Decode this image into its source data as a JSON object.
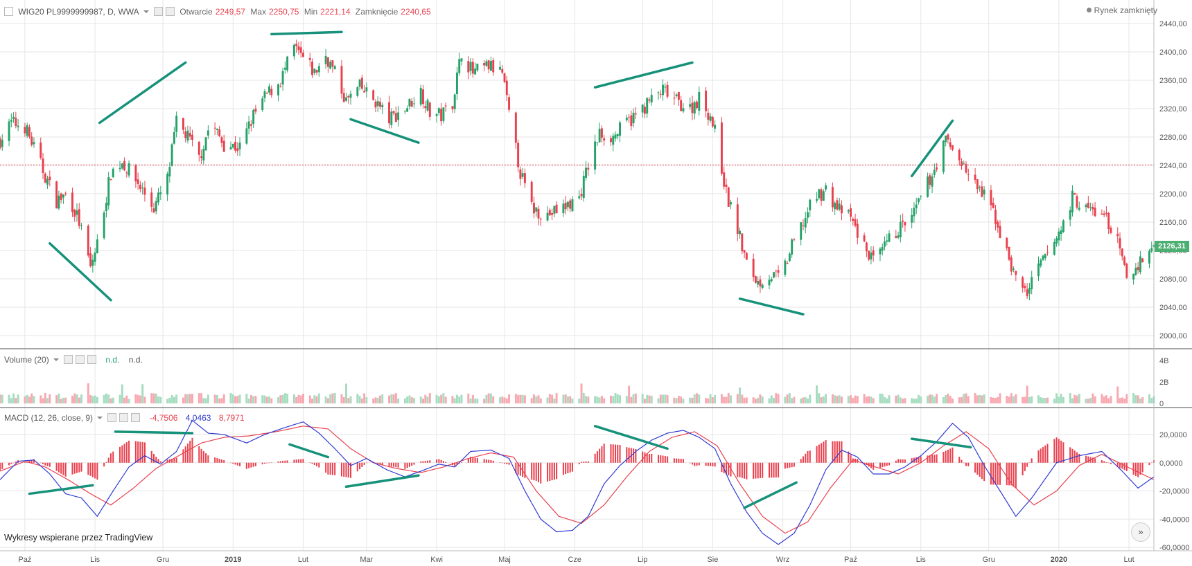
{
  "header": {
    "symbol": "WIG20 PL9999999987, D, WWA",
    "open_label": "Otwarcie",
    "open_value": "2249,57",
    "max_label": "Max",
    "max_value": "2250,75",
    "min_label": "Min",
    "min_value": "2221,14",
    "close_label": "Zamknięcie",
    "close_value": "2240,65",
    "market_status": "Rynek zamknięty"
  },
  "volume_legend": {
    "title": "Volume (20)",
    "v1": "n.d.",
    "v2": "n.d."
  },
  "macd_legend": {
    "title": "MACD (12, 26, close, 9)",
    "hist": "-4,7506",
    "macd": "4,0463",
    "signal": "8,7971"
  },
  "credit": "Wykresy wspierane przez TradingView",
  "last_price_label": "2126,31",
  "colors": {
    "up": "#26a269",
    "down": "#e8414e",
    "macd": "#2f3bd0",
    "signal": "#e8414e",
    "trend": "#16917a",
    "volume_up": "#a6dcc0",
    "volume_down": "#f7a8b0"
  },
  "chart_data": [
    {
      "type": "candlestick",
      "ylim": [
        2000,
        2440
      ],
      "y_ticks": [
        "2440,00",
        "2400,00",
        "2360,00",
        "2320,00",
        "2280,00",
        "2240,00",
        "2200,00",
        "2160,00",
        "2120,00",
        "2080,00",
        "2040,00",
        "2000,00"
      ],
      "x_tick_labels": [
        "Paź",
        "Lis",
        "Gru",
        "2019",
        "Lut",
        "Mar",
        "Kwi",
        "Maj",
        "Cze",
        "Lip",
        "Sie",
        "Wrz",
        "Paź",
        "Lis",
        "Gru",
        "2020",
        "Lut"
      ],
      "x_tick_dates": [
        "2018-10-01",
        "2018-11-01",
        "2018-12-01",
        "2019-01-01",
        "2019-02-01",
        "2019-03-01",
        "2019-04-01",
        "2019-05-01",
        "2019-06-01",
        "2019-07-01",
        "2019-08-01",
        "2019-09-01",
        "2019-10-01",
        "2019-11-01",
        "2019-12-01",
        "2020-01-01",
        "2020-02-01"
      ],
      "date_range": [
        "2018-09-20",
        "2020-02-12"
      ],
      "reference_line": 2240.65,
      "last_price": 2126.31,
      "price_path": [
        [
          "2018-09-20",
          2275
        ],
        [
          "2018-09-25",
          2300
        ],
        [
          "2018-10-01",
          2295
        ],
        [
          "2018-10-05",
          2265
        ],
        [
          "2018-10-10",
          2225
        ],
        [
          "2018-10-15",
          2190
        ],
        [
          "2018-10-20",
          2200
        ],
        [
          "2018-10-25",
          2160
        ],
        [
          "2018-10-30",
          2095
        ],
        [
          "2018-11-02",
          2130
        ],
        [
          "2018-11-08",
          2230
        ],
        [
          "2018-11-13",
          2245
        ],
        [
          "2018-11-20",
          2215
        ],
        [
          "2018-11-27",
          2180
        ],
        [
          "2018-12-03",
          2220
        ],
        [
          "2018-12-07",
          2300
        ],
        [
          "2018-12-12",
          2280
        ],
        [
          "2018-12-17",
          2250
        ],
        [
          "2018-12-22",
          2300
        ],
        [
          "2018-12-28",
          2270
        ],
        [
          "2019-01-04",
          2265
        ],
        [
          "2019-01-10",
          2310
        ],
        [
          "2019-01-16",
          2340
        ],
        [
          "2019-01-22",
          2360
        ],
        [
          "2019-01-28",
          2405
        ],
        [
          "2019-02-01",
          2390
        ],
        [
          "2019-02-06",
          2370
        ],
        [
          "2019-02-11",
          2395
        ],
        [
          "2019-02-15",
          2370
        ],
        [
          "2019-02-20",
          2330
        ],
        [
          "2019-02-26",
          2350
        ],
        [
          "2019-03-05",
          2330
        ],
        [
          "2019-03-11",
          2305
        ],
        [
          "2019-03-18",
          2320
        ],
        [
          "2019-03-25",
          2345
        ],
        [
          "2019-03-29",
          2315
        ],
        [
          "2019-04-03",
          2310
        ],
        [
          "2019-04-08",
          2330
        ],
        [
          "2019-04-12",
          2400
        ],
        [
          "2019-04-17",
          2370
        ],
        [
          "2019-04-24",
          2380
        ],
        [
          "2019-04-30",
          2370
        ],
        [
          "2019-05-03",
          2310
        ],
        [
          "2019-05-08",
          2230
        ],
        [
          "2019-05-13",
          2180
        ],
        [
          "2019-05-20",
          2170
        ],
        [
          "2019-05-27",
          2180
        ],
        [
          "2019-06-03",
          2195
        ],
        [
          "2019-06-07",
          2240
        ],
        [
          "2019-06-12",
          2285
        ],
        [
          "2019-06-18",
          2280
        ],
        [
          "2019-06-24",
          2300
        ],
        [
          "2019-06-28",
          2310
        ],
        [
          "2019-07-04",
          2330
        ],
        [
          "2019-07-10",
          2345
        ],
        [
          "2019-07-16",
          2330
        ],
        [
          "2019-07-22",
          2320
        ],
        [
          "2019-07-26",
          2335
        ],
        [
          "2019-07-31",
          2310
        ],
        [
          "2019-08-03",
          2275
        ],
        [
          "2019-08-07",
          2200
        ],
        [
          "2019-08-12",
          2150
        ],
        [
          "2019-08-16",
          2100
        ],
        [
          "2019-08-21",
          2075
        ],
        [
          "2019-08-26",
          2085
        ],
        [
          "2019-08-31",
          2080
        ],
        [
          "2019-09-05",
          2125
        ],
        [
          "2019-09-10",
          2160
        ],
        [
          "2019-09-15",
          2195
        ],
        [
          "2019-09-20",
          2205
        ],
        [
          "2019-09-25",
          2180
        ],
        [
          "2019-10-01",
          2165
        ],
        [
          "2019-10-07",
          2125
        ],
        [
          "2019-10-12",
          2100
        ],
        [
          "2019-10-17",
          2130
        ],
        [
          "2019-10-22",
          2150
        ],
        [
          "2019-10-28",
          2165
        ],
        [
          "2019-11-02",
          2200
        ],
        [
          "2019-11-07",
          2235
        ],
        [
          "2019-11-12",
          2275
        ],
        [
          "2019-11-18",
          2250
        ],
        [
          "2019-11-23",
          2220
        ],
        [
          "2019-11-28",
          2200
        ],
        [
          "2019-12-03",
          2175
        ],
        [
          "2019-12-08",
          2125
        ],
        [
          "2019-12-13",
          2080
        ],
        [
          "2019-12-18",
          2060
        ],
        [
          "2019-12-23",
          2095
        ],
        [
          "2019-12-28",
          2120
        ],
        [
          "2020-01-02",
          2150
        ],
        [
          "2020-01-07",
          2195
        ],
        [
          "2020-01-12",
          2180
        ],
        [
          "2020-01-17",
          2175
        ],
        [
          "2020-01-22",
          2165
        ],
        [
          "2020-01-27",
          2130
        ],
        [
          "2020-01-31",
          2080
        ],
        [
          "2020-02-05",
          2100
        ],
        [
          "2020-02-12",
          2126
        ]
      ],
      "trendlines": [
        [
          [
            "2018-10-12",
            2130
          ],
          [
            "2018-11-08",
            2050
          ]
        ],
        [
          [
            "2018-11-03",
            2300
          ],
          [
            "2018-12-11",
            2385
          ]
        ],
        [
          [
            "2019-01-18",
            2425
          ],
          [
            "2019-02-18",
            2428
          ]
        ],
        [
          [
            "2019-02-22",
            2305
          ],
          [
            "2019-03-24",
            2272
          ]
        ],
        [
          [
            "2019-06-10",
            2350
          ],
          [
            "2019-07-23",
            2385
          ]
        ],
        [
          [
            "2019-08-13",
            2052
          ],
          [
            "2019-09-10",
            2030
          ]
        ],
        [
          [
            "2019-10-28",
            2225
          ],
          [
            "2019-11-15",
            2303
          ]
        ]
      ]
    },
    {
      "type": "bar",
      "title": "Volume (20)",
      "ylim": [
        0,
        4
      ],
      "y_ticks": [
        "4B",
        "2B",
        "0"
      ],
      "typical_value": 0.7,
      "series": [
        {
          "name": "Volume",
          "values": []
        }
      ]
    },
    {
      "type": "line",
      "title": "MACD (12, 26, close, 9)",
      "ylim": [
        -60000,
        30000
      ],
      "y_ticks": [
        "20,0000",
        "0,0000",
        "-20,0000",
        "-40,0000",
        "-60,0000"
      ],
      "macd_path": [
        [
          "2018-09-20",
          -12000
        ],
        [
          "2018-09-28",
          1000
        ],
        [
          "2018-10-05",
          2000
        ],
        [
          "2018-10-12",
          -8000
        ],
        [
          "2018-10-19",
          -22000
        ],
        [
          "2018-10-26",
          -25000
        ],
        [
          "2018-11-02",
          -38000
        ],
        [
          "2018-11-09",
          -20000
        ],
        [
          "2018-11-16",
          -3000
        ],
        [
          "2018-11-23",
          5000
        ],
        [
          "2018-11-30",
          -1000
        ],
        [
          "2018-12-07",
          8000
        ],
        [
          "2018-12-14",
          30000
        ],
        [
          "2018-12-21",
          21000
        ],
        [
          "2018-12-28",
          20000
        ],
        [
          "2019-01-07",
          14000
        ],
        [
          "2019-01-15",
          20000
        ],
        [
          "2019-01-24",
          25000
        ],
        [
          "2019-02-01",
          29000
        ],
        [
          "2019-02-08",
          21000
        ],
        [
          "2019-02-15",
          10000
        ],
        [
          "2019-02-22",
          -2000
        ],
        [
          "2019-03-01",
          3000
        ],
        [
          "2019-03-10",
          -5000
        ],
        [
          "2019-03-18",
          -10000
        ],
        [
          "2019-03-25",
          -6000
        ],
        [
          "2019-04-02",
          -1000
        ],
        [
          "2019-04-09",
          -3000
        ],
        [
          "2019-04-16",
          8000
        ],
        [
          "2019-04-25",
          9000
        ],
        [
          "2019-05-03",
          3000
        ],
        [
          "2019-05-10",
          -20000
        ],
        [
          "2019-05-17",
          -40000
        ],
        [
          "2019-05-24",
          -49000
        ],
        [
          "2019-05-31",
          -48000
        ],
        [
          "2019-06-07",
          -38000
        ],
        [
          "2019-06-14",
          -15000
        ],
        [
          "2019-06-21",
          -2000
        ],
        [
          "2019-06-28",
          8000
        ],
        [
          "2019-07-05",
          16000
        ],
        [
          "2019-07-12",
          21000
        ],
        [
          "2019-07-19",
          23000
        ],
        [
          "2019-07-26",
          18000
        ],
        [
          "2019-08-02",
          10000
        ],
        [
          "2019-08-09",
          -15000
        ],
        [
          "2019-08-16",
          -35000
        ],
        [
          "2019-08-23",
          -50000
        ],
        [
          "2019-08-30",
          -58000
        ],
        [
          "2019-09-06",
          -50000
        ],
        [
          "2019-09-13",
          -30000
        ],
        [
          "2019-09-20",
          -5000
        ],
        [
          "2019-09-27",
          9000
        ],
        [
          "2019-10-04",
          4000
        ],
        [
          "2019-10-11",
          -8000
        ],
        [
          "2019-10-18",
          -8000
        ],
        [
          "2019-10-25",
          -3000
        ],
        [
          "2019-11-01",
          5000
        ],
        [
          "2019-11-08",
          15000
        ],
        [
          "2019-11-15",
          28000
        ],
        [
          "2019-11-22",
          18000
        ],
        [
          "2019-11-29",
          -2000
        ],
        [
          "2019-12-06",
          -20000
        ],
        [
          "2019-12-13",
          -38000
        ],
        [
          "2019-12-20",
          -25000
        ],
        [
          "2019-12-31",
          0
        ],
        [
          "2020-01-10",
          5000
        ],
        [
          "2020-01-20",
          8000
        ],
        [
          "2020-01-29",
          -6000
        ],
        [
          "2020-02-05",
          -18000
        ],
        [
          "2020-02-12",
          -10000
        ]
      ],
      "signal_path": [
        [
          "2018-09-20",
          -6000
        ],
        [
          "2018-10-01",
          1000
        ],
        [
          "2018-10-10",
          -3000
        ],
        [
          "2018-10-20",
          -12000
        ],
        [
          "2018-10-30",
          -22000
        ],
        [
          "2018-11-08",
          -30000
        ],
        [
          "2018-11-18",
          -18000
        ],
        [
          "2018-11-28",
          -4000
        ],
        [
          "2018-12-08",
          5000
        ],
        [
          "2018-12-18",
          14000
        ],
        [
          "2018-12-28",
          18000
        ],
        [
          "2019-01-08",
          19000
        ],
        [
          "2019-01-20",
          22000
        ],
        [
          "2019-02-01",
          26000
        ],
        [
          "2019-02-12",
          24000
        ],
        [
          "2019-02-22",
          10000
        ],
        [
          "2019-03-04",
          0
        ],
        [
          "2019-03-14",
          -4000
        ],
        [
          "2019-03-25",
          -7000
        ],
        [
          "2019-04-04",
          -3000
        ],
        [
          "2019-04-15",
          3000
        ],
        [
          "2019-04-25",
          7000
        ],
        [
          "2019-05-05",
          4000
        ],
        [
          "2019-05-15",
          -20000
        ],
        [
          "2019-05-25",
          -38000
        ],
        [
          "2019-06-04",
          -43000
        ],
        [
          "2019-06-14",
          -30000
        ],
        [
          "2019-06-24",
          -10000
        ],
        [
          "2019-07-04",
          8000
        ],
        [
          "2019-07-14",
          18000
        ],
        [
          "2019-07-24",
          22000
        ],
        [
          "2019-08-03",
          12000
        ],
        [
          "2019-08-13",
          -15000
        ],
        [
          "2019-08-23",
          -38000
        ],
        [
          "2019-09-02",
          -50000
        ],
        [
          "2019-09-12",
          -42000
        ],
        [
          "2019-09-22",
          -18000
        ],
        [
          "2019-10-02",
          2000
        ],
        [
          "2019-10-12",
          -3000
        ],
        [
          "2019-10-22",
          -8000
        ],
        [
          "2019-11-01",
          0
        ],
        [
          "2019-11-11",
          12000
        ],
        [
          "2019-11-21",
          22000
        ],
        [
          "2019-12-01",
          10000
        ],
        [
          "2019-12-11",
          -15000
        ],
        [
          "2019-12-21",
          -30000
        ],
        [
          "2019-12-31",
          -20000
        ],
        [
          "2020-01-10",
          -2000
        ],
        [
          "2020-01-20",
          6000
        ],
        [
          "2020-01-30",
          -2000
        ],
        [
          "2020-02-12",
          -12000
        ]
      ],
      "trendlines": [
        [
          [
            "2018-10-03",
            -22000
          ],
          [
            "2018-10-31",
            -16000
          ]
        ],
        [
          [
            "2018-11-10",
            22000
          ],
          [
            "2018-12-14",
            21000
          ]
        ],
        [
          [
            "2019-01-26",
            13000
          ],
          [
            "2019-02-12",
            4000
          ]
        ],
        [
          [
            "2019-02-20",
            -17000
          ],
          [
            "2019-03-24",
            -9000
          ]
        ],
        [
          [
            "2019-06-10",
            26000
          ],
          [
            "2019-07-12",
            10000
          ]
        ],
        [
          [
            "2019-08-15",
            -32000
          ],
          [
            "2019-09-07",
            -14000
          ]
        ],
        [
          [
            "2019-10-28",
            17000
          ],
          [
            "2019-11-23",
            11000
          ]
        ]
      ]
    }
  ]
}
